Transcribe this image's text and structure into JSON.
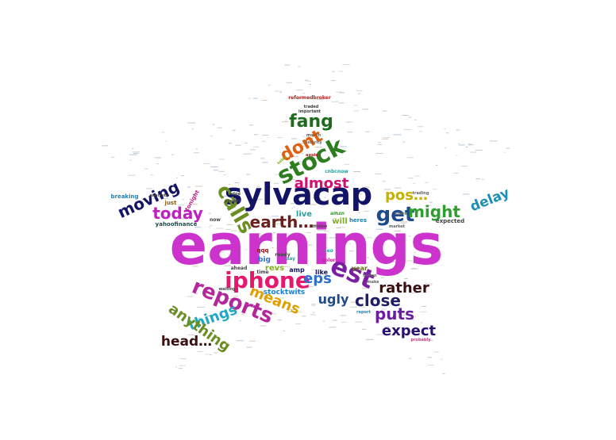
{
  "words": [
    {
      "text": "earnings",
      "color": "#cc33cc"
    },
    {
      "text": "sylvacap",
      "color": "#141466"
    },
    {
      "text": "iphone",
      "color": "#e6186e"
    },
    {
      "text": "est",
      "color": "#7a1fa2"
    },
    {
      "text": "stock",
      "color": "#2e7d1e"
    },
    {
      "text": "reports",
      "color": "#b4269c"
    },
    {
      "text": "get",
      "color": "#1e4b8c"
    },
    {
      "text": "calls",
      "color": "#6b8e23"
    },
    {
      "text": "today",
      "color": "#c020c0"
    },
    {
      "text": "might",
      "color": "#2e9e2e"
    },
    {
      "text": "earth…",
      "color": "#6b2020"
    },
    {
      "text": "dont",
      "color": "#e06010"
    },
    {
      "text": "fang",
      "color": "#1e6b1e"
    },
    {
      "text": "moving",
      "color": "#141466"
    },
    {
      "text": "almost",
      "color": "#d0106e"
    },
    {
      "text": "pos…",
      "color": "#c8b000"
    },
    {
      "text": "delay",
      "color": "#1e8fb4"
    },
    {
      "text": "close",
      "color": "#1e1e66"
    },
    {
      "text": "rather",
      "color": "#3a1010"
    },
    {
      "text": "eps",
      "color": "#3070d0"
    },
    {
      "text": "means",
      "color": "#e0a000"
    },
    {
      "text": "things",
      "color": "#20a8c8"
    },
    {
      "text": "anything",
      "color": "#6b8e23"
    },
    {
      "text": "puts",
      "color": "#6a1fa2"
    },
    {
      "text": "expect",
      "color": "#2a1070"
    },
    {
      "text": "ugly",
      "color": "#1e4b8c"
    },
    {
      "text": "head…",
      "color": "#3a1010"
    },
    {
      "text": "live",
      "color": "#2ea0a0"
    },
    {
      "text": "will",
      "color": "#80b020"
    },
    {
      "text": "revs",
      "color": "#80b020"
    },
    {
      "text": "stocktwits",
      "color": "#2080d0"
    },
    {
      "text": "big",
      "color": "#3070d0"
    },
    {
      "text": "qqq",
      "color": "#a01010"
    },
    {
      "text": "like",
      "color": "#141466"
    },
    {
      "text": "year",
      "color": "#6b6b20"
    },
    {
      "text": "amp",
      "color": "#141466"
    },
    {
      "text": "just",
      "color": "#8b5a10"
    },
    {
      "text": "tonight",
      "color": "#c0208a"
    },
    {
      "text": "yahoofinance",
      "color": "#1e4b4b"
    },
    {
      "text": "breaking",
      "color": "#2080b0"
    },
    {
      "text": "analysts",
      "color": "#444444"
    },
    {
      "text": "month",
      "color": "#666666"
    },
    {
      "text": "selerity",
      "color": "#666666"
    },
    {
      "text": "apple",
      "color": "#b02020"
    },
    {
      "text": "sales",
      "color": "#80b020"
    },
    {
      "text": "cnbcnow",
      "color": "#2ea0a0"
    },
    {
      "text": "expected",
      "color": "#444444"
    },
    {
      "text": "market",
      "color": "#666666"
    },
    {
      "text": "share",
      "color": "#666666"
    },
    {
      "text": "trading",
      "color": "#666666"
    },
    {
      "text": "billion",
      "color": "#666666"
    },
    {
      "text": "report",
      "color": "#2080b0"
    },
    {
      "text": "probably",
      "color": "#c04080"
    },
    {
      "text": "reformedbroker",
      "color": "#b02020"
    },
    {
      "text": "traded",
      "color": "#444444"
    },
    {
      "text": "important",
      "color": "#444444"
    },
    {
      "text": "heres",
      "color": "#2080b0"
    },
    {
      "text": "move",
      "color": "#444444"
    },
    {
      "text": "amzn",
      "color": "#2e9e2e"
    },
    {
      "text": "ready",
      "color": "#444444"
    },
    {
      "text": "time",
      "color": "#444444"
    },
    {
      "text": "ahead",
      "color": "#444444"
    },
    {
      "text": "day",
      "color": "#2ea0a0"
    },
    {
      "text": "make",
      "color": "#666666"
    },
    {
      "text": "now",
      "color": "#444444"
    },
    {
      "text": "waiting",
      "color": "#444444"
    },
    {
      "text": "ceo",
      "color": "#2ea0a0"
    },
    {
      "text": "color",
      "color": "#c0208a"
    },
    {
      "text": "edge",
      "color": "#444444"
    },
    {
      "text": "ponder",
      "color": "#444444"
    }
  ]
}
